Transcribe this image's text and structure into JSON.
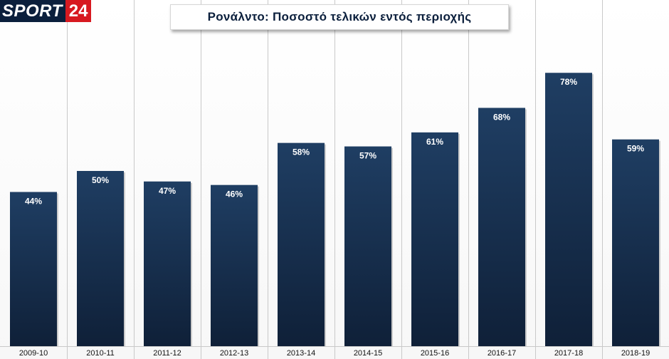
{
  "brand": {
    "logo_word": "SPORT",
    "logo_number": "24"
  },
  "colors": {
    "bar_top": "#1f3e63",
    "bar_bottom": "#0f2038",
    "grid": "#c9c9c9",
    "brand_red": "#d71920",
    "brand_navy": "#0b1f3c"
  },
  "chart_data": {
    "type": "bar",
    "title": "Ρονάλντο: Ποσοστό τελικών εντός περιοχής",
    "xlabel": "",
    "ylabel": "",
    "categories": [
      "2009-10",
      "2010-11",
      "2011-12",
      "2012-13",
      "2013-14",
      "2014-15",
      "2015-16",
      "2016-17",
      "2017-18",
      "2018-19"
    ],
    "values": [
      44,
      50,
      47,
      46,
      58,
      57,
      61,
      68,
      78,
      59
    ],
    "data_labels": [
      "44%",
      "50%",
      "47%",
      "46%",
      "58%",
      "57%",
      "61%",
      "68%",
      "78%",
      "59%"
    ],
    "unit": "%",
    "ylim": [
      0,
      100
    ],
    "grid": "vertical separators",
    "legend": "none"
  }
}
